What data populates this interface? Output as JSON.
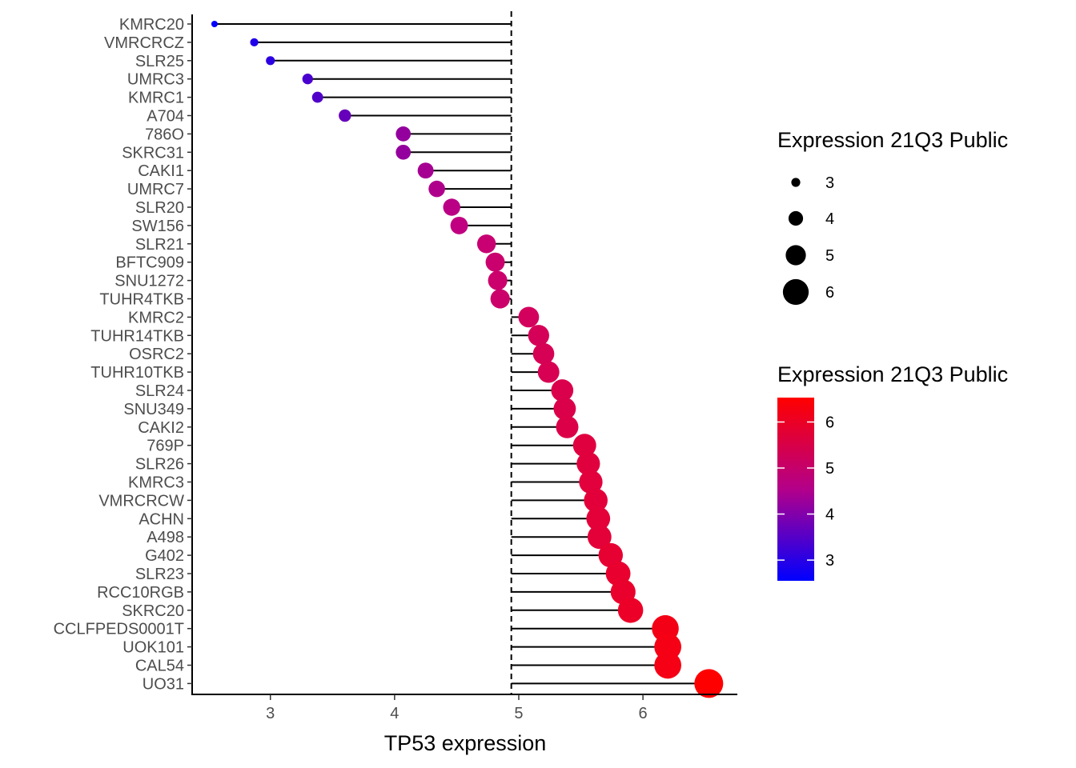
{
  "chart_data": {
    "type": "lollipop",
    "xlabel": "TP53 expression",
    "ylabel": "",
    "xlim": [
      2.37,
      6.76
    ],
    "x_ticks": [
      3,
      4,
      5,
      6
    ],
    "reference_line": 4.94,
    "colors": {
      "low": "#0000ff",
      "mid": "#c2007f",
      "high": "#ff0000",
      "line": "#000000"
    },
    "categories": [
      "KMRC20",
      "VMRCRCZ",
      "SLR25",
      "UMRC3",
      "KMRC1",
      "A704",
      "786O",
      "SKRC31",
      "CAKI1",
      "UMRC7",
      "SLR20",
      "SW156",
      "SLR21",
      "BFTC909",
      "SNU1272",
      "TUHR4TKB",
      "KMRC2",
      "TUHR14TKB",
      "OSRC2",
      "TUHR10TKB",
      "SLR24",
      "SNU349",
      "CAKI2",
      "769P",
      "SLR26",
      "KMRC3",
      "VMRCRCW",
      "ACHN",
      "A498",
      "G402",
      "SLR23",
      "RCC10RGB",
      "SKRC20",
      "CCLFPEDS0001T",
      "UOK101",
      "CAL54",
      "UO31"
    ],
    "values": [
      2.55,
      2.87,
      3.0,
      3.3,
      3.38,
      3.6,
      4.07,
      4.07,
      4.25,
      4.34,
      4.46,
      4.52,
      4.74,
      4.81,
      4.83,
      4.85,
      5.08,
      5.16,
      5.2,
      5.24,
      5.35,
      5.37,
      5.39,
      5.53,
      5.56,
      5.58,
      5.62,
      5.64,
      5.65,
      5.74,
      5.8,
      5.84,
      5.9,
      6.18,
      6.2,
      6.2,
      6.53
    ],
    "legends": {
      "size": {
        "title": "Expression 21Q3 Public",
        "labels": [
          "3",
          "4",
          "5",
          "6"
        ],
        "values": [
          3,
          4,
          5,
          6
        ]
      },
      "color": {
        "title": "Expression 21Q3 Public",
        "labels": [
          "3",
          "4",
          "5",
          "6"
        ],
        "values": [
          3,
          4,
          5,
          6
        ],
        "range": [
          2.55,
          6.53
        ]
      }
    }
  }
}
